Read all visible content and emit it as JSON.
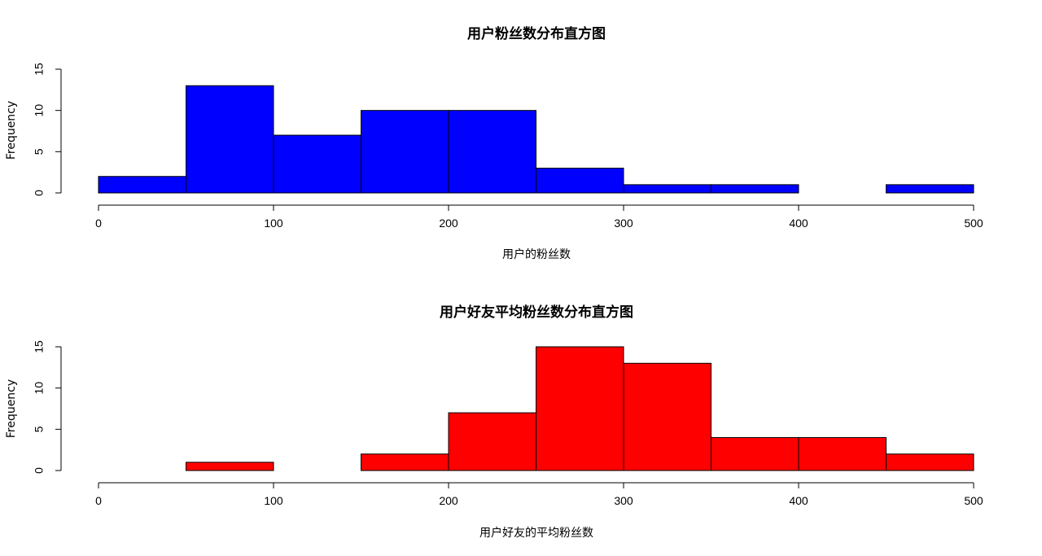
{
  "chart_data": [
    {
      "type": "bar",
      "title": "用户粉丝数分布直方图",
      "xlabel": "用户的粉丝数",
      "ylabel": "Frequency",
      "bins": [
        [
          0,
          50
        ],
        [
          50,
          100
        ],
        [
          100,
          150
        ],
        [
          150,
          200
        ],
        [
          200,
          250
        ],
        [
          250,
          300
        ],
        [
          300,
          350
        ],
        [
          350,
          400
        ],
        [
          400,
          450
        ],
        [
          450,
          500
        ]
      ],
      "values": [
        2,
        13,
        7,
        10,
        10,
        3,
        1,
        1,
        0,
        1
      ],
      "xlim": [
        0,
        500
      ],
      "ylim": [
        0,
        15
      ],
      "xticks": [
        "0",
        "100",
        "200",
        "300",
        "400",
        "500"
      ],
      "yticks": [
        "0",
        "5",
        "10",
        "15"
      ],
      "color": "#0000ff",
      "grid": false
    },
    {
      "type": "bar",
      "title": "用户好友平均粉丝数分布直方图",
      "xlabel": "用户好友的平均粉丝数",
      "ylabel": "Frequency",
      "bins": [
        [
          0,
          50
        ],
        [
          50,
          100
        ],
        [
          100,
          150
        ],
        [
          150,
          200
        ],
        [
          200,
          250
        ],
        [
          250,
          300
        ],
        [
          300,
          350
        ],
        [
          350,
          400
        ],
        [
          400,
          450
        ],
        [
          450,
          500
        ]
      ],
      "values": [
        0,
        1,
        0,
        2,
        7,
        15,
        13,
        4,
        4,
        2
      ],
      "xlim": [
        0,
        500
      ],
      "ylim": [
        0,
        15
      ],
      "xticks": [
        "0",
        "100",
        "200",
        "300",
        "400",
        "500"
      ],
      "yticks": [
        "0",
        "5",
        "10",
        "15"
      ],
      "color": "#ff0000",
      "grid": false
    }
  ]
}
